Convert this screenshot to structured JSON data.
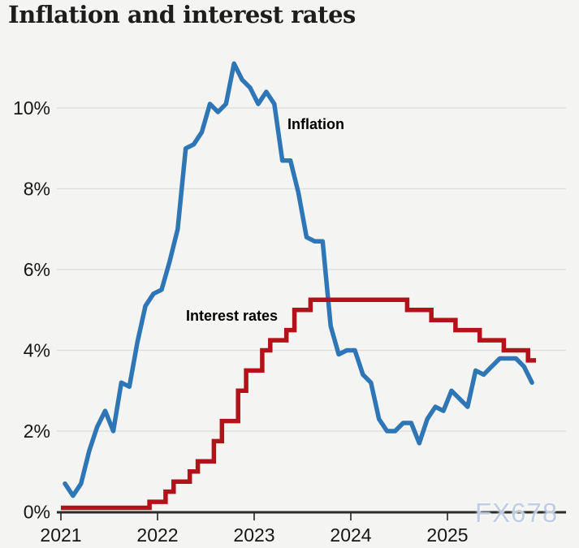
{
  "page": {
    "title": "Inflation and interest rates",
    "watermark": "FX678"
  },
  "chart_data": {
    "type": "line",
    "title": "Inflation and interest rates",
    "x_axis": {
      "ticks": [
        "2021",
        "2022",
        "2023",
        "2024",
        "2025"
      ],
      "range_years": [
        2021,
        2026.25
      ]
    },
    "y_axis": {
      "tick_labels": [
        "0%",
        "2%",
        "4%",
        "6%",
        "8%",
        "10%"
      ],
      "tick_values": [
        0,
        2,
        4,
        6,
        8,
        10
      ],
      "range": [
        0,
        11.3
      ],
      "unit": "%",
      "grid": true
    },
    "legend": "inline-labels-on-plot",
    "series": [
      {
        "name": "Inflation",
        "type": "line",
        "color": "#2e76b6",
        "unit": "%",
        "points": [
          [
            "2021-01",
            0.7
          ],
          [
            "2021-02",
            0.4
          ],
          [
            "2021-03",
            0.7
          ],
          [
            "2021-04",
            1.5
          ],
          [
            "2021-05",
            2.1
          ],
          [
            "2021-06",
            2.5
          ],
          [
            "2021-07",
            2.0
          ],
          [
            "2021-08",
            3.2
          ],
          [
            "2021-09",
            3.1
          ],
          [
            "2021-10",
            4.2
          ],
          [
            "2021-11",
            5.1
          ],
          [
            "2021-12",
            5.4
          ],
          [
            "2022-01",
            5.5
          ],
          [
            "2022-02",
            6.2
          ],
          [
            "2022-03",
            7.0
          ],
          [
            "2022-04",
            9.0
          ],
          [
            "2022-05",
            9.1
          ],
          [
            "2022-06",
            9.4
          ],
          [
            "2022-07",
            10.1
          ],
          [
            "2022-08",
            9.9
          ],
          [
            "2022-09",
            10.1
          ],
          [
            "2022-10",
            11.1
          ],
          [
            "2022-11",
            10.7
          ],
          [
            "2022-12",
            10.5
          ],
          [
            "2023-01",
            10.1
          ],
          [
            "2023-02",
            10.4
          ],
          [
            "2023-03",
            10.1
          ],
          [
            "2023-04",
            8.7
          ],
          [
            "2023-05",
            8.7
          ],
          [
            "2023-06",
            7.9
          ],
          [
            "2023-07",
            6.8
          ],
          [
            "2023-08",
            6.7
          ],
          [
            "2023-09",
            6.7
          ],
          [
            "2023-10",
            4.6
          ],
          [
            "2023-11",
            3.9
          ],
          [
            "2023-12",
            4.0
          ],
          [
            "2024-01",
            4.0
          ],
          [
            "2024-02",
            3.4
          ],
          [
            "2024-03",
            3.2
          ],
          [
            "2024-04",
            2.3
          ],
          [
            "2024-05",
            2.0
          ],
          [
            "2024-06",
            2.0
          ],
          [
            "2024-07",
            2.2
          ],
          [
            "2024-08",
            2.2
          ],
          [
            "2024-09",
            1.7
          ],
          [
            "2024-10",
            2.3
          ],
          [
            "2024-11",
            2.6
          ],
          [
            "2024-12",
            2.5
          ],
          [
            "2025-01",
            3.0
          ],
          [
            "2025-02",
            2.8
          ],
          [
            "2025-03",
            2.6
          ],
          [
            "2025-04",
            3.5
          ],
          [
            "2025-05",
            3.4
          ],
          [
            "2025-06",
            3.6
          ],
          [
            "2025-07",
            3.8
          ],
          [
            "2025-08",
            3.8
          ],
          [
            "2025-09",
            3.8
          ],
          [
            "2025-10",
            3.6
          ],
          [
            "2025-11",
            3.2
          ]
        ]
      },
      {
        "name": "Interest rates",
        "type": "step",
        "color": "#b3121a",
        "unit": "%",
        "points": [
          [
            "2021-01",
            0.1
          ],
          [
            "2021-12",
            0.25
          ],
          [
            "2022-02",
            0.5
          ],
          [
            "2022-03",
            0.75
          ],
          [
            "2022-05",
            1.0
          ],
          [
            "2022-06",
            1.25
          ],
          [
            "2022-08",
            1.75
          ],
          [
            "2022-09",
            2.25
          ],
          [
            "2022-11",
            3.0
          ],
          [
            "2022-12",
            3.5
          ],
          [
            "2023-02",
            4.0
          ],
          [
            "2023-03",
            4.25
          ],
          [
            "2023-05",
            4.5
          ],
          [
            "2023-06",
            5.0
          ],
          [
            "2023-08",
            5.25
          ],
          [
            "2024-08",
            5.0
          ],
          [
            "2024-11",
            4.75
          ],
          [
            "2025-02",
            4.5
          ],
          [
            "2025-05",
            4.25
          ],
          [
            "2025-08",
            4.0
          ],
          [
            "2025-11",
            3.75
          ]
        ],
        "end": "2025-12"
      }
    ],
    "style": {
      "background": "#f4f4f2",
      "grid_color": "#dcdcda",
      "axis_color": "#2a2a2a",
      "tick_color": "#4d4d4d",
      "text_color": "#161616",
      "watermark_color": "#b9c9e0"
    }
  }
}
